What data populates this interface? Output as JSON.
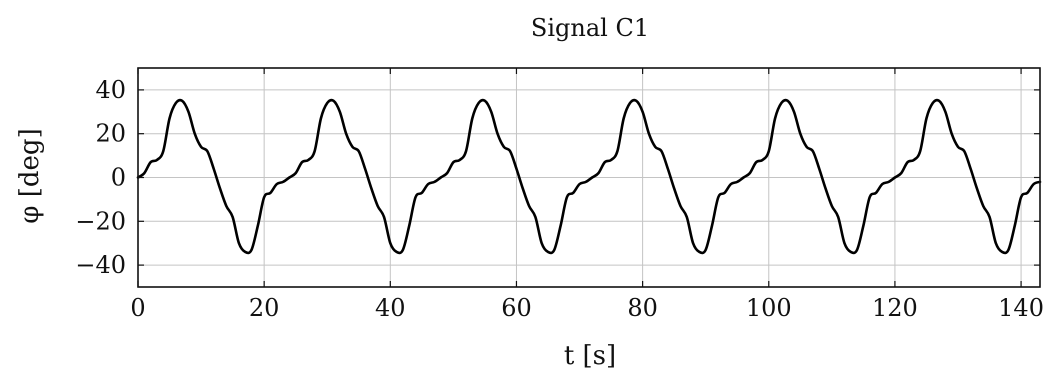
{
  "chart_data": {
    "type": "line",
    "title": "Signal C1",
    "xlabel": "t [s]",
    "ylabel": "φ [deg]",
    "xlim": [
      0,
      143
    ],
    "ylim": [
      -50,
      50
    ],
    "xticks": [
      0,
      20,
      40,
      60,
      80,
      100,
      120,
      140
    ],
    "yticks": [
      40,
      20,
      0,
      -20,
      -40
    ],
    "xtick_labels": [
      "0",
      "20",
      "40",
      "60",
      "80",
      "100",
      "120",
      "140"
    ],
    "ytick_labels": [
      "40",
      "20",
      "0",
      "−20",
      "−40"
    ],
    "grid": true,
    "series": [
      {
        "color": "#000000",
        "x": [
          0,
          1,
          2,
          3,
          4,
          5,
          6,
          7,
          8,
          9,
          10,
          11,
          12,
          13,
          14,
          15,
          16,
          17,
          18,
          19,
          20,
          21,
          22,
          23,
          24,
          25,
          26,
          27,
          28,
          29,
          30,
          31,
          32,
          33,
          34,
          35,
          36,
          37,
          38,
          39,
          40,
          41,
          42,
          43,
          44,
          45,
          46,
          47,
          48,
          49,
          50,
          51,
          52,
          53,
          54,
          55,
          56,
          57,
          58,
          59,
          60,
          61,
          62,
          63,
          64,
          65,
          66,
          67,
          68,
          69,
          70,
          71,
          72,
          73,
          74,
          75,
          76,
          77,
          78,
          79,
          80,
          81,
          82,
          83,
          84,
          85,
          86,
          87,
          88,
          89,
          90,
          91,
          92,
          93,
          94,
          95,
          96,
          97,
          98,
          99,
          100,
          101,
          102,
          103,
          104,
          105,
          106,
          107,
          108,
          109,
          110,
          111,
          112,
          113,
          114,
          115,
          116,
          117,
          118,
          119,
          120,
          121,
          122,
          123,
          124,
          125,
          126,
          127,
          128,
          129,
          130,
          131,
          132,
          133,
          134,
          135,
          136,
          137,
          138,
          139,
          140,
          141,
          142,
          143
        ],
        "y": [
          0,
          2,
          7,
          8,
          12,
          27,
          34,
          35,
          30,
          20,
          14,
          12,
          4,
          -5,
          -13,
          -18,
          -30,
          -34,
          -33,
          -22,
          -9,
          -7,
          -3,
          -2,
          0,
          2,
          7,
          8,
          12,
          27,
          34,
          35,
          30,
          20,
          14,
          12,
          4,
          -5,
          -13,
          -18,
          -30,
          -34,
          -33,
          -22,
          -9,
          -7,
          -3,
          -2,
          0,
          2,
          7,
          8,
          12,
          27,
          34,
          35,
          30,
          20,
          14,
          12,
          4,
          -5,
          -13,
          -18,
          -30,
          -34,
          -33,
          -22,
          -9,
          -7,
          -3,
          -2,
          0,
          2,
          7,
          8,
          12,
          27,
          34,
          35,
          30,
          20,
          14,
          12,
          4,
          -5,
          -13,
          -18,
          -30,
          -34,
          -33,
          -22,
          -9,
          -7,
          -3,
          -2,
          0,
          2,
          7,
          8,
          12,
          27,
          34,
          35,
          30,
          20,
          14,
          12,
          4,
          -5,
          -13,
          -18,
          -30,
          -34,
          -33,
          -22,
          -9,
          -7,
          -3,
          -2,
          0,
          2,
          7,
          8,
          12,
          27,
          34,
          35,
          30,
          20,
          14,
          12,
          4,
          -5,
          -13,
          -18,
          -30,
          -34,
          -33,
          -22,
          -9,
          -7,
          -3,
          -2
        ]
      }
    ]
  }
}
